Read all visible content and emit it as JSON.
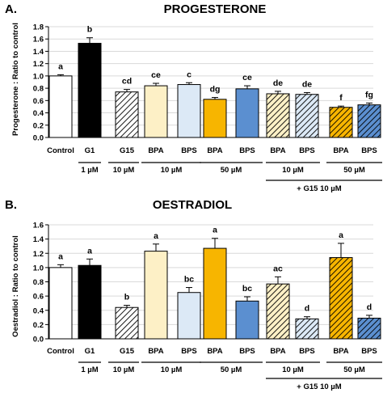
{
  "colors": {
    "white": "#ffffff",
    "black": "#000000",
    "cream": "#fdf0c6",
    "lightblue": "#dce9f6",
    "orange": "#f7b500",
    "blue": "#5b8fd0",
    "grid": "#d9d9d9"
  },
  "chart_data": [
    {
      "type": "bar",
      "panel_label": "A.",
      "title": "PROGESTERONE",
      "ylabel": "Progesterone : Ratio to control",
      "ylim": [
        0,
        1.8
      ],
      "yticks": [
        "0.0",
        "0.2",
        "0.4",
        "0.6",
        "0.8",
        "1.0",
        "1.2",
        "1.4",
        "1.6",
        "1.8"
      ],
      "categories": [
        "Control",
        "G1",
        "G15",
        "BPA",
        "BPS",
        "BPA",
        "BPS",
        "BPA",
        "BPS",
        "BPA",
        "BPS"
      ],
      "values": [
        1.0,
        1.53,
        0.74,
        0.84,
        0.86,
        0.62,
        0.79,
        0.71,
        0.7,
        0.49,
        0.53
      ],
      "errors": [
        0.02,
        0.09,
        0.04,
        0.04,
        0.03,
        0.03,
        0.05,
        0.04,
        0.03,
        0.02,
        0.03
      ],
      "letters": [
        "a",
        "b",
        "cd",
        "ce",
        "c",
        "dg",
        "ce",
        "de",
        "de",
        "f",
        "fg"
      ],
      "fills": [
        "white",
        "black",
        "hatch-white",
        "cream",
        "lightblue",
        "orange",
        "blue",
        "hatch-cream",
        "hatch-lightblue",
        "hatch-orange",
        "hatch-blue"
      ],
      "dose_labels": [
        "1 µM",
        "10 µM",
        "10 µM",
        "50 µM",
        "10 µM",
        "50 µM"
      ],
      "group_label": "+ G15 10 µM"
    },
    {
      "type": "bar",
      "panel_label": "B.",
      "title": "OESTRADIOL",
      "ylabel": "Oestradiol : Ratio to control",
      "ylim": [
        0,
        1.6
      ],
      "yticks": [
        "0.0",
        "0.2",
        "0.4",
        "0.6",
        "0.8",
        "1.0",
        "1.2",
        "1.4",
        "1.6"
      ],
      "categories": [
        "Control",
        "G1",
        "G15",
        "BPA",
        "BPS",
        "BPA",
        "BPS",
        "BPA",
        "BPS",
        "BPA",
        "BPS"
      ],
      "values": [
        1.0,
        1.03,
        0.44,
        1.23,
        0.65,
        1.27,
        0.53,
        0.77,
        0.28,
        1.14,
        0.29
      ],
      "errors": [
        0.04,
        0.09,
        0.03,
        0.1,
        0.07,
        0.14,
        0.06,
        0.1,
        0.03,
        0.2,
        0.04
      ],
      "letters": [
        "a",
        "a",
        "b",
        "a",
        "bc",
        "a",
        "bc",
        "ac",
        "d",
        "a",
        "d"
      ],
      "fills": [
        "white",
        "black",
        "hatch-white",
        "cream",
        "lightblue",
        "orange",
        "blue",
        "hatch-cream",
        "hatch-lightblue",
        "hatch-orange",
        "hatch-blue"
      ],
      "dose_labels": [
        "1 µM",
        "10 µM",
        "10 µM",
        "50 µM",
        "10 µM",
        "50 µM"
      ],
      "group_label": "+ G15 10 µM"
    }
  ]
}
